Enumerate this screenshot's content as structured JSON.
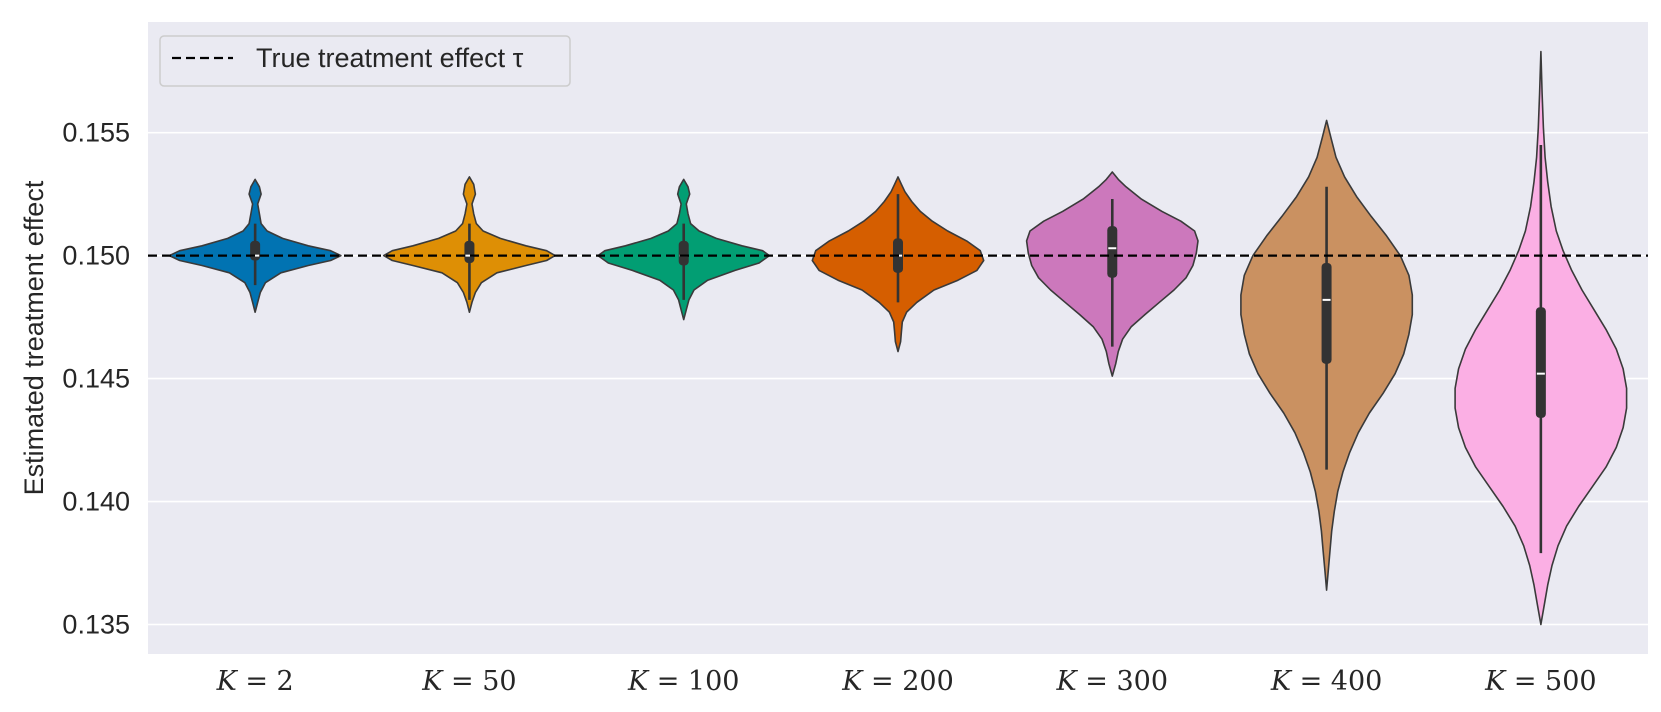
{
  "chart_data": {
    "type": "violin",
    "title": "",
    "xlabel": "",
    "ylabel": "Estimated treatment effect",
    "ylim": [
      0.1338,
      0.1595
    ],
    "yticks": [
      0.135,
      0.14,
      0.145,
      0.15,
      0.155
    ],
    "ytick_labels": [
      "0.135",
      "0.140",
      "0.145",
      "0.150",
      "0.155"
    ],
    "grid": true,
    "legend": {
      "position": "top-left",
      "entries": [
        "True treatment effect τ"
      ]
    },
    "reference_line": {
      "value": 0.15,
      "style": "dashed",
      "label": "True treatment effect τ"
    },
    "series": [
      {
        "name": "K = 2",
        "var": "K",
        "k": "2",
        "color": "#0173b2",
        "min": 0.1477,
        "max": 0.1531,
        "q1": 0.1498,
        "median": 0.15,
        "q3": 0.1506,
        "wlo": 0.1488,
        "whi": 0.1513,
        "profile": [
          [
            0.1477,
            0
          ],
          [
            0.1481,
            0.03
          ],
          [
            0.1485,
            0.06
          ],
          [
            0.1489,
            0.12
          ],
          [
            0.1493,
            0.3
          ],
          [
            0.1496,
            0.62
          ],
          [
            0.1498,
            0.88
          ],
          [
            0.15,
            1.0
          ],
          [
            0.1502,
            0.88
          ],
          [
            0.1504,
            0.62
          ],
          [
            0.1507,
            0.32
          ],
          [
            0.151,
            0.14
          ],
          [
            0.1513,
            0.07
          ],
          [
            0.1517,
            0.05
          ],
          [
            0.1521,
            0.03
          ],
          [
            0.1525,
            0.07
          ],
          [
            0.1528,
            0.05
          ],
          [
            0.1531,
            0
          ]
        ]
      },
      {
        "name": "K = 50",
        "var": "K",
        "k": "50",
        "color": "#de8f05",
        "min": 0.1477,
        "max": 0.1532,
        "q1": 0.1497,
        "median": 0.15,
        "q3": 0.1506,
        "wlo": 0.1482,
        "whi": 0.1513,
        "profile": [
          [
            0.1477,
            0
          ],
          [
            0.1481,
            0.03
          ],
          [
            0.1485,
            0.07
          ],
          [
            0.1489,
            0.14
          ],
          [
            0.1493,
            0.32
          ],
          [
            0.1496,
            0.66
          ],
          [
            0.1498,
            0.9
          ],
          [
            0.15,
            1.0
          ],
          [
            0.1502,
            0.9
          ],
          [
            0.1504,
            0.66
          ],
          [
            0.1507,
            0.36
          ],
          [
            0.151,
            0.16
          ],
          [
            0.1513,
            0.08
          ],
          [
            0.1517,
            0.05
          ],
          [
            0.1521,
            0.03
          ],
          [
            0.1525,
            0.07
          ],
          [
            0.1529,
            0.05
          ],
          [
            0.1532,
            0
          ]
        ]
      },
      {
        "name": "K = 100",
        "var": "K",
        "k": "100",
        "color": "#029e73",
        "min": 0.1474,
        "max": 0.1531,
        "q1": 0.1496,
        "median": 0.15,
        "q3": 0.1506,
        "wlo": 0.1482,
        "whi": 0.1513,
        "profile": [
          [
            0.1474,
            0
          ],
          [
            0.1478,
            0.03
          ],
          [
            0.1482,
            0.06
          ],
          [
            0.1486,
            0.12
          ],
          [
            0.149,
            0.28
          ],
          [
            0.1494,
            0.6
          ],
          [
            0.1497,
            0.88
          ],
          [
            0.15,
            1.0
          ],
          [
            0.1502,
            0.92
          ],
          [
            0.1504,
            0.68
          ],
          [
            0.1507,
            0.38
          ],
          [
            0.151,
            0.18
          ],
          [
            0.1513,
            0.08
          ],
          [
            0.1517,
            0.05
          ],
          [
            0.1521,
            0.03
          ],
          [
            0.1525,
            0.07
          ],
          [
            0.1528,
            0.05
          ],
          [
            0.1531,
            0
          ]
        ]
      },
      {
        "name": "K = 200",
        "var": "K",
        "k": "200",
        "color": "#d55e00",
        "min": 0.1461,
        "max": 0.1532,
        "q1": 0.1493,
        "median": 0.15,
        "q3": 0.1507,
        "wlo": 0.1481,
        "whi": 0.1525,
        "profile": [
          [
            0.1461,
            0
          ],
          [
            0.1465,
            0.03
          ],
          [
            0.1469,
            0.04
          ],
          [
            0.1473,
            0.05
          ],
          [
            0.1477,
            0.1
          ],
          [
            0.1481,
            0.22
          ],
          [
            0.1486,
            0.42
          ],
          [
            0.149,
            0.7
          ],
          [
            0.1494,
            0.92
          ],
          [
            0.1498,
            1.0
          ],
          [
            0.1502,
            0.96
          ],
          [
            0.1506,
            0.8
          ],
          [
            0.151,
            0.58
          ],
          [
            0.1514,
            0.4
          ],
          [
            0.1518,
            0.26
          ],
          [
            0.1522,
            0.16
          ],
          [
            0.1526,
            0.08
          ],
          [
            0.1529,
            0.04
          ],
          [
            0.1532,
            0
          ]
        ]
      },
      {
        "name": "K = 300",
        "var": "K",
        "k": "300",
        "color": "#cc78bc",
        "min": 0.1451,
        "max": 0.1534,
        "q1": 0.1491,
        "median": 0.1503,
        "q3": 0.1512,
        "wlo": 0.1463,
        "whi": 0.1523,
        "profile": [
          [
            0.1451,
            0
          ],
          [
            0.1456,
            0.04
          ],
          [
            0.1461,
            0.07
          ],
          [
            0.1466,
            0.12
          ],
          [
            0.1471,
            0.22
          ],
          [
            0.1476,
            0.38
          ],
          [
            0.1481,
            0.55
          ],
          [
            0.1486,
            0.72
          ],
          [
            0.1491,
            0.86
          ],
          [
            0.1496,
            0.94
          ],
          [
            0.1501,
            0.98
          ],
          [
            0.1506,
            1.0
          ],
          [
            0.151,
            0.96
          ],
          [
            0.1514,
            0.8
          ],
          [
            0.1518,
            0.58
          ],
          [
            0.1523,
            0.34
          ],
          [
            0.1528,
            0.16
          ],
          [
            0.1531,
            0.07
          ],
          [
            0.1534,
            0
          ]
        ]
      },
      {
        "name": "K = 400",
        "var": "K",
        "k": "400",
        "color": "#ca9161",
        "min": 0.1364,
        "max": 0.1555,
        "q1": 0.1456,
        "median": 0.1482,
        "q3": 0.1497,
        "wlo": 0.1413,
        "whi": 0.1528,
        "profile": [
          [
            0.1364,
            0
          ],
          [
            0.1372,
            0.02
          ],
          [
            0.138,
            0.04
          ],
          [
            0.1388,
            0.06
          ],
          [
            0.1396,
            0.09
          ],
          [
            0.1404,
            0.13
          ],
          [
            0.1412,
            0.19
          ],
          [
            0.142,
            0.27
          ],
          [
            0.1428,
            0.37
          ],
          [
            0.1436,
            0.5
          ],
          [
            0.1444,
            0.66
          ],
          [
            0.1452,
            0.8
          ],
          [
            0.146,
            0.9
          ],
          [
            0.1468,
            0.96
          ],
          [
            0.1476,
            1.0
          ],
          [
            0.1484,
            1.0
          ],
          [
            0.1492,
            0.96
          ],
          [
            0.15,
            0.86
          ],
          [
            0.1508,
            0.7
          ],
          [
            0.1516,
            0.52
          ],
          [
            0.1524,
            0.35
          ],
          [
            0.1532,
            0.21
          ],
          [
            0.154,
            0.11
          ],
          [
            0.1548,
            0.05
          ],
          [
            0.1555,
            0
          ]
        ]
      },
      {
        "name": "K = 500",
        "var": "K",
        "k": "500",
        "color": "#fbafe4",
        "min": 0.135,
        "max": 0.1583,
        "q1": 0.1434,
        "median": 0.1452,
        "q3": 0.1479,
        "wlo": 0.1379,
        "whi": 0.1545,
        "profile": [
          [
            0.135,
            0
          ],
          [
            0.1358,
            0.04
          ],
          [
            0.1366,
            0.08
          ],
          [
            0.1374,
            0.13
          ],
          [
            0.1382,
            0.2
          ],
          [
            0.139,
            0.3
          ],
          [
            0.1398,
            0.44
          ],
          [
            0.1406,
            0.6
          ],
          [
            0.1414,
            0.76
          ],
          [
            0.1422,
            0.88
          ],
          [
            0.143,
            0.96
          ],
          [
            0.1438,
            1.0
          ],
          [
            0.1446,
            1.0
          ],
          [
            0.1454,
            0.96
          ],
          [
            0.1462,
            0.88
          ],
          [
            0.147,
            0.76
          ],
          [
            0.1478,
            0.62
          ],
          [
            0.1486,
            0.48
          ],
          [
            0.1494,
            0.36
          ],
          [
            0.1502,
            0.26
          ],
          [
            0.151,
            0.18
          ],
          [
            0.152,
            0.12
          ],
          [
            0.153,
            0.08
          ],
          [
            0.154,
            0.05
          ],
          [
            0.1552,
            0.03
          ],
          [
            0.1566,
            0.015
          ],
          [
            0.1583,
            0
          ]
        ]
      }
    ]
  }
}
